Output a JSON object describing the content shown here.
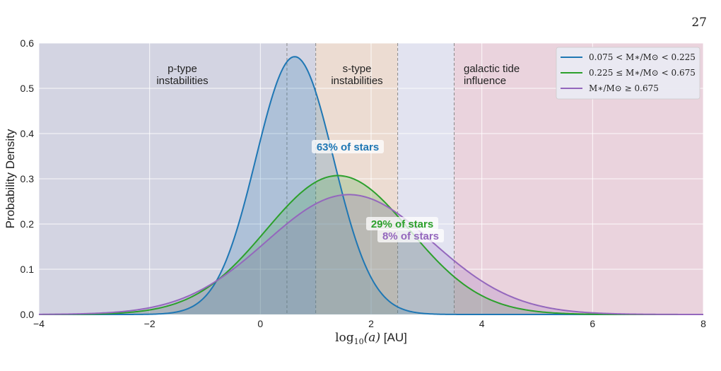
{
  "page_number": "27",
  "chart_data": {
    "type": "area",
    "xlabel_math": "log",
    "xlabel_sub": "10",
    "xlabel_arg": "(a)",
    "xlabel_unit": " [AU]",
    "ylabel": "Probability Density",
    "xlim": [
      -4,
      8
    ],
    "ylim": [
      0,
      0.6
    ],
    "xticks": [
      -4,
      -2,
      0,
      2,
      4,
      6,
      8
    ],
    "xtick_labels": [
      "−4",
      "−2",
      "0",
      "2",
      "4",
      "6",
      "8"
    ],
    "yticks": [
      0.0,
      0.1,
      0.2,
      0.3,
      0.4,
      0.5,
      0.6
    ],
    "ytick_labels": [
      "0.0",
      "0.1",
      "0.2",
      "0.3",
      "0.4",
      "0.5",
      "0.6"
    ],
    "grid": true,
    "legend_position": "top-right",
    "regions": [
      {
        "label": [
          "p-type",
          "instabilities"
        ],
        "from": -4,
        "to": 1.0,
        "color": "#d3d4e2",
        "boundary": 0.48
      },
      {
        "label": [
          "s-type",
          "instabilities"
        ],
        "from": 1.0,
        "to": 2.48,
        "color": "#ecdcd2"
      },
      {
        "label": [],
        "from": 2.48,
        "to": 3.5,
        "color": "#e2e3f0"
      },
      {
        "label": [
          "galactic tide",
          "influence"
        ],
        "from": 3.5,
        "to": 8,
        "color": "#ead3dd"
      }
    ],
    "boundaries": [
      0.48,
      1.0,
      2.48,
      3.5
    ],
    "series": [
      {
        "name": "0.075 < M∗/M⊙ < 0.225",
        "color": "#1f77b4",
        "fill": "rgba(31,119,180,0.2)",
        "peak_x": 0.62,
        "peak_y": 0.57,
        "sigma": 0.7,
        "annotation": "63% of stars"
      },
      {
        "name": "0.225 ≤ M∗/M⊙ < 0.675",
        "color": "#2ca02c",
        "fill": "rgba(44,160,44,0.2)",
        "peak_x": 1.4,
        "peak_y": 0.307,
        "sigma": 1.3,
        "annotation": "29% of stars"
      },
      {
        "name": "M∗/M⊙ ≥ 0.675",
        "color": "#9467bd",
        "fill": "rgba(148,103,189,0.22)",
        "peak_x": 1.6,
        "peak_y": 0.265,
        "sigma": 1.5,
        "annotation": "8% of stars"
      }
    ]
  }
}
